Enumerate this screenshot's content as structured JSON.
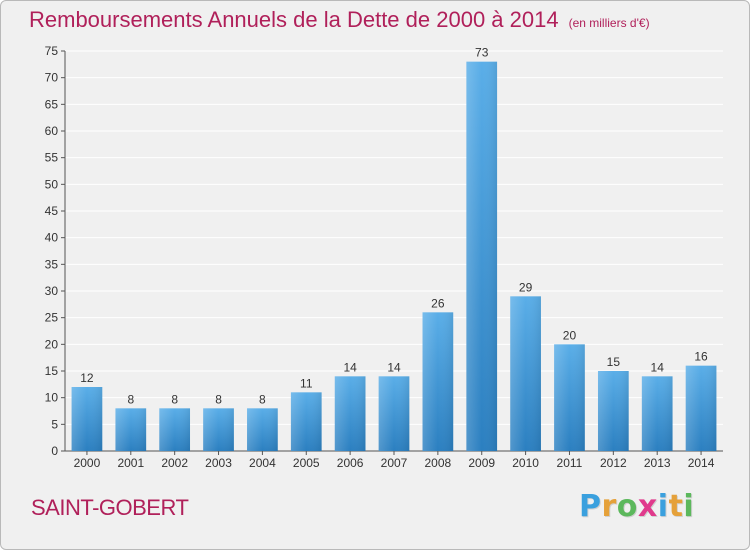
{
  "title": "Remboursements Annuels de la Dette de 2000 à 2014",
  "unit": "(en milliers d'€)",
  "commune": "SAINT-GOBERT",
  "logo_text": "Proxiti",
  "colors": {
    "title": "#b0205a",
    "bar_top": "#5aaee8",
    "bar_bottom": "#2b7fc0",
    "grid": "#ffffff",
    "background": "#f0f0f0"
  },
  "chart_data": {
    "type": "bar",
    "categories": [
      "2000",
      "2001",
      "2002",
      "2003",
      "2004",
      "2005",
      "2006",
      "2007",
      "2008",
      "2009",
      "2010",
      "2011",
      "2012",
      "2013",
      "2014"
    ],
    "values": [
      12,
      8,
      8,
      8,
      8,
      11,
      14,
      14,
      26,
      73,
      29,
      20,
      15,
      14,
      16
    ],
    "ylim": [
      0,
      75
    ],
    "yticks": [
      0,
      5,
      10,
      15,
      20,
      25,
      30,
      35,
      40,
      45,
      50,
      55,
      60,
      65,
      70,
      75
    ],
    "grid": true,
    "data_labels": true
  }
}
